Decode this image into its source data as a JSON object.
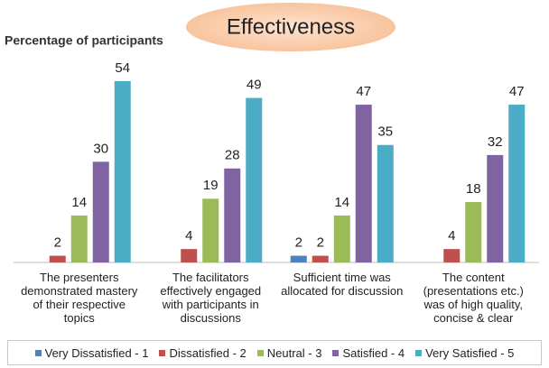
{
  "chart_data": {
    "type": "bar",
    "title": "Effectiveness",
    "y_label": "Percentage of participants",
    "categories": [
      "The presenters demonstrated mastery of their respective topics",
      "The facilitators effectively engaged with participants in discussions",
      "Sufficient time was allocated for discussion",
      "The content (presentations etc.) was of high quality, concise & clear"
    ],
    "series": [
      {
        "name": "Very Dissatisfied - 1",
        "color": "#4f81bd",
        "values": [
          null,
          null,
          2,
          null
        ]
      },
      {
        "name": "Dissatisfied - 2",
        "color": "#c0504d",
        "values": [
          2,
          4,
          2,
          4
        ]
      },
      {
        "name": "Neutral - 3",
        "color": "#9bbb59",
        "values": [
          14,
          19,
          14,
          18
        ]
      },
      {
        "name": "Satisfied - 4",
        "color": "#8064a2",
        "values": [
          30,
          28,
          47,
          32
        ]
      },
      {
        "name": "Very Satisfied - 5",
        "color": "#4bacc6",
        "values": [
          54,
          49,
          35,
          47
        ]
      }
    ],
    "legend": "bottom"
  }
}
